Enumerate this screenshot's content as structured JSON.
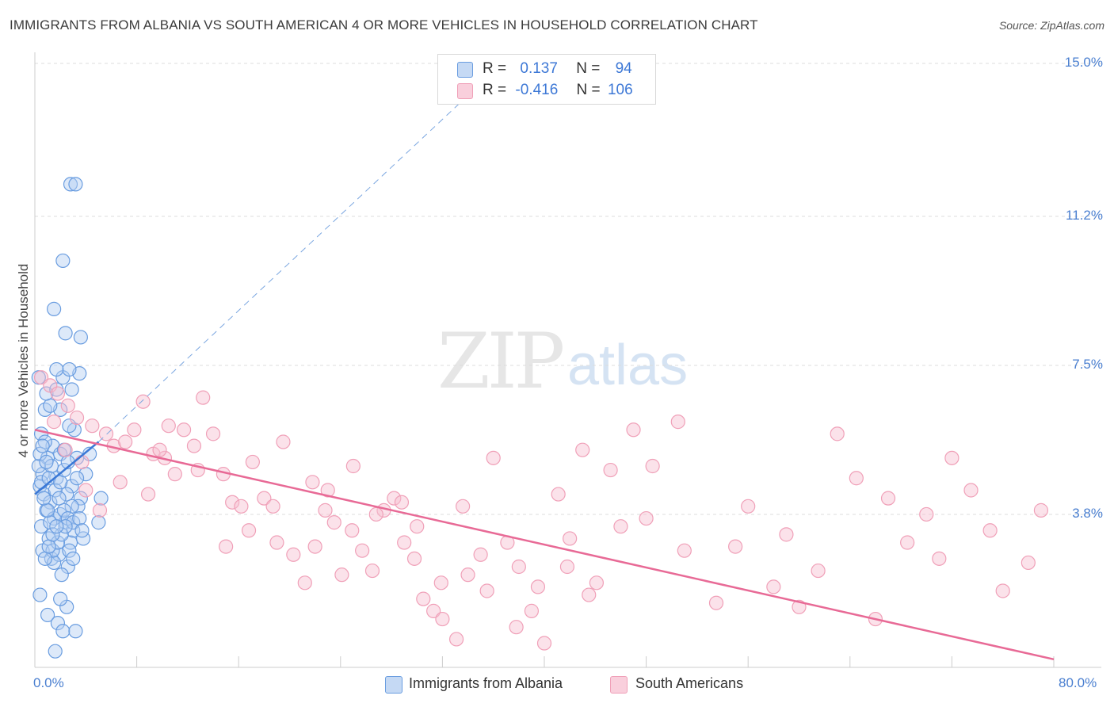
{
  "title": "IMMIGRANTS FROM ALBANIA VS SOUTH AMERICAN 4 OR MORE VEHICLES IN HOUSEHOLD CORRELATION CHART",
  "source": "Source: ZipAtlas.com",
  "watermark": {
    "zip": "ZIP",
    "atlas": "atlas"
  },
  "legend": {
    "r_label": "R =",
    "n_label": "N =",
    "series1": {
      "r": "0.137",
      "n": "94"
    },
    "series2": {
      "r": "-0.416",
      "n": "106"
    }
  },
  "colors": {
    "blue": "#6a9de0",
    "blue_line": "#3a78d6",
    "pink": "#f0a0b8",
    "pink_line": "#e86a96",
    "axis_text": "#4a7fd0"
  },
  "chart_data": {
    "type": "scatter",
    "ylabel": "4 or more Vehicles in Household",
    "xlim": [
      0,
      80
    ],
    "ylim": [
      0,
      15.0
    ],
    "y_ticks": [
      "3.8%",
      "7.5%",
      "11.2%",
      "15.0%"
    ],
    "y_tick_values": [
      3.8,
      7.5,
      11.2,
      15.0
    ],
    "x_tick_labels": [
      "0.0%",
      "80.0%"
    ],
    "x_tick_values": [
      0,
      80
    ],
    "grid": true,
    "legend_position": "top-center",
    "series": [
      {
        "name": "Immigrants from Albania",
        "color": "#6a9de0",
        "trend": {
          "x": [
            0.0,
            5.0
          ],
          "y": [
            4.3,
            5.6
          ]
        },
        "trend_extended": {
          "x": [
            5.0,
            35.0
          ],
          "y": [
            5.6,
            14.5
          ]
        },
        "points": [
          [
            0.3,
            7.2
          ],
          [
            0.5,
            5.8
          ],
          [
            0.8,
            6.4
          ],
          [
            1.0,
            5.2
          ],
          [
            0.6,
            4.8
          ],
          [
            0.4,
            4.5
          ],
          [
            0.7,
            4.3
          ],
          [
            1.2,
            4.1
          ],
          [
            0.9,
            3.9
          ],
          [
            1.5,
            3.7
          ],
          [
            0.5,
            3.5
          ],
          [
            1.1,
            3.2
          ],
          [
            0.6,
            2.9
          ],
          [
            1.3,
            2.7
          ],
          [
            0.4,
            1.8
          ],
          [
            1.0,
            1.3
          ],
          [
            1.8,
            1.1
          ],
          [
            2.2,
            0.9
          ],
          [
            3.2,
            0.9
          ],
          [
            2.5,
            1.5
          ],
          [
            2.0,
            1.7
          ],
          [
            1.6,
            0.4
          ],
          [
            2.4,
            3.6
          ],
          [
            2.8,
            3.1
          ],
          [
            1.9,
            2.8
          ],
          [
            1.5,
            2.6
          ],
          [
            2.6,
            2.5
          ],
          [
            2.1,
            2.3
          ],
          [
            3.0,
            3.4
          ],
          [
            2.9,
            4.5
          ],
          [
            1.7,
            4.7
          ],
          [
            2.5,
            4.3
          ],
          [
            1.4,
            5.5
          ],
          [
            2.0,
            5.3
          ],
          [
            0.8,
            5.6
          ],
          [
            1.3,
            5.0
          ],
          [
            2.3,
            5.4
          ],
          [
            3.3,
            5.2
          ],
          [
            3.1,
            5.9
          ],
          [
            2.7,
            6.0
          ],
          [
            2.0,
            6.4
          ],
          [
            1.2,
            6.5
          ],
          [
            0.9,
            6.8
          ],
          [
            1.7,
            6.9
          ],
          [
            2.9,
            6.9
          ],
          [
            2.2,
            7.2
          ],
          [
            3.5,
            7.3
          ],
          [
            2.7,
            7.4
          ],
          [
            1.7,
            7.4
          ],
          [
            3.6,
            8.2
          ],
          [
            2.4,
            8.3
          ],
          [
            1.5,
            8.9
          ],
          [
            2.2,
            10.1
          ],
          [
            2.8,
            12.0
          ],
          [
            3.2,
            12.0
          ],
          [
            5.2,
            4.2
          ],
          [
            5.0,
            3.6
          ],
          [
            3.8,
            3.2
          ],
          [
            4.3,
            5.3
          ],
          [
            4.0,
            4.8
          ],
          [
            3.6,
            4.2
          ],
          [
            3.4,
            4.0
          ],
          [
            2.9,
            4.0
          ],
          [
            2.0,
            3.8
          ],
          [
            1.2,
            3.6
          ],
          [
            1.0,
            3.9
          ],
          [
            0.7,
            4.2
          ],
          [
            0.5,
            4.6
          ],
          [
            0.3,
            5.0
          ],
          [
            0.4,
            5.3
          ],
          [
            0.6,
            5.5
          ],
          [
            0.9,
            5.1
          ],
          [
            1.1,
            4.7
          ],
          [
            1.6,
            4.4
          ],
          [
            1.9,
            4.2
          ],
          [
            2.3,
            3.9
          ],
          [
            2.6,
            3.7
          ],
          [
            3.0,
            3.6
          ],
          [
            3.5,
            3.7
          ],
          [
            3.7,
            3.4
          ],
          [
            1.4,
            2.9
          ],
          [
            1.8,
            3.1
          ],
          [
            2.1,
            3.3
          ],
          [
            2.4,
            3.5
          ],
          [
            2.7,
            2.9
          ],
          [
            3.0,
            2.7
          ],
          [
            0.8,
            2.7
          ],
          [
            1.1,
            3.0
          ],
          [
            1.4,
            3.3
          ],
          [
            1.7,
            3.5
          ],
          [
            2.0,
            4.6
          ],
          [
            2.3,
            4.9
          ],
          [
            2.6,
            5.1
          ],
          [
            3.3,
            4.7
          ]
        ]
      },
      {
        "name": "South Americans",
        "color": "#f0a0b8",
        "trend": {
          "x": [
            0.0,
            80.0
          ],
          "y": [
            5.9,
            0.2
          ]
        },
        "points": [
          [
            0.5,
            7.2
          ],
          [
            1.2,
            7.0
          ],
          [
            1.8,
            6.8
          ],
          [
            2.6,
            6.5
          ],
          [
            3.3,
            6.2
          ],
          [
            4.5,
            6.0
          ],
          [
            5.6,
            5.8
          ],
          [
            6.2,
            5.5
          ],
          [
            7.1,
            5.6
          ],
          [
            7.8,
            5.9
          ],
          [
            8.5,
            6.6
          ],
          [
            9.3,
            5.3
          ],
          [
            10.2,
            5.2
          ],
          [
            11.0,
            4.8
          ],
          [
            11.7,
            5.9
          ],
          [
            12.5,
            5.5
          ],
          [
            13.2,
            6.7
          ],
          [
            14.0,
            5.8
          ],
          [
            14.8,
            4.8
          ],
          [
            15.5,
            4.1
          ],
          [
            16.2,
            4.0
          ],
          [
            17.1,
            5.1
          ],
          [
            18.0,
            4.2
          ],
          [
            18.7,
            4.0
          ],
          [
            19.5,
            5.6
          ],
          [
            20.3,
            2.8
          ],
          [
            21.2,
            2.1
          ],
          [
            22.0,
            3.0
          ],
          [
            22.8,
            3.9
          ],
          [
            23.5,
            3.6
          ],
          [
            24.1,
            2.3
          ],
          [
            24.9,
            3.4
          ],
          [
            25.7,
            2.9
          ],
          [
            26.5,
            2.4
          ],
          [
            27.4,
            3.9
          ],
          [
            28.2,
            4.2
          ],
          [
            29.0,
            3.1
          ],
          [
            29.8,
            2.7
          ],
          [
            30.5,
            1.7
          ],
          [
            31.3,
            1.4
          ],
          [
            32.0,
            1.2
          ],
          [
            33.1,
            0.7
          ],
          [
            34.0,
            2.3
          ],
          [
            35.0,
            2.8
          ],
          [
            36.0,
            5.2
          ],
          [
            37.1,
            3.1
          ],
          [
            38.0,
            2.5
          ],
          [
            39.0,
            1.4
          ],
          [
            40.0,
            0.6
          ],
          [
            41.1,
            4.3
          ],
          [
            42.0,
            3.2
          ],
          [
            43.0,
            5.4
          ],
          [
            44.1,
            2.1
          ],
          [
            45.2,
            4.9
          ],
          [
            47.0,
            5.9
          ],
          [
            48.5,
            5.0
          ],
          [
            50.5,
            6.1
          ],
          [
            55.0,
            3.0
          ],
          [
            58.0,
            2.0
          ],
          [
            60.0,
            1.5
          ],
          [
            63.0,
            5.8
          ],
          [
            67.0,
            4.2
          ],
          [
            70.0,
            3.8
          ],
          [
            72.0,
            5.2
          ],
          [
            75.0,
            3.4
          ],
          [
            78.0,
            2.6
          ],
          [
            10.5,
            6.0
          ],
          [
            12.8,
            4.9
          ],
          [
            8.9,
            4.3
          ],
          [
            6.7,
            4.6
          ],
          [
            5.1,
            3.9
          ],
          [
            4.0,
            4.4
          ],
          [
            3.7,
            5.1
          ],
          [
            2.4,
            5.4
          ],
          [
            1.5,
            6.1
          ],
          [
            9.8,
            5.4
          ],
          [
            16.8,
            3.4
          ],
          [
            19.0,
            3.1
          ],
          [
            21.8,
            4.6
          ],
          [
            23.0,
            4.4
          ],
          [
            25.0,
            5.0
          ],
          [
            26.8,
            3.8
          ],
          [
            28.8,
            4.1
          ],
          [
            30.0,
            3.5
          ],
          [
            31.9,
            2.1
          ],
          [
            33.6,
            4.0
          ],
          [
            35.5,
            1.9
          ],
          [
            37.8,
            1.0
          ],
          [
            39.5,
            2.0
          ],
          [
            41.8,
            2.5
          ],
          [
            43.5,
            1.8
          ],
          [
            46.0,
            3.5
          ],
          [
            48.0,
            3.7
          ],
          [
            51.0,
            2.9
          ],
          [
            53.5,
            1.6
          ],
          [
            56.0,
            4.0
          ],
          [
            59.0,
            3.3
          ],
          [
            61.5,
            2.4
          ],
          [
            64.5,
            4.7
          ],
          [
            66.0,
            1.2
          ],
          [
            68.5,
            3.1
          ],
          [
            71.0,
            2.7
          ],
          [
            73.5,
            4.4
          ],
          [
            76.0,
            1.9
          ],
          [
            79.0,
            3.9
          ],
          [
            15.0,
            3.0
          ]
        ]
      }
    ]
  }
}
